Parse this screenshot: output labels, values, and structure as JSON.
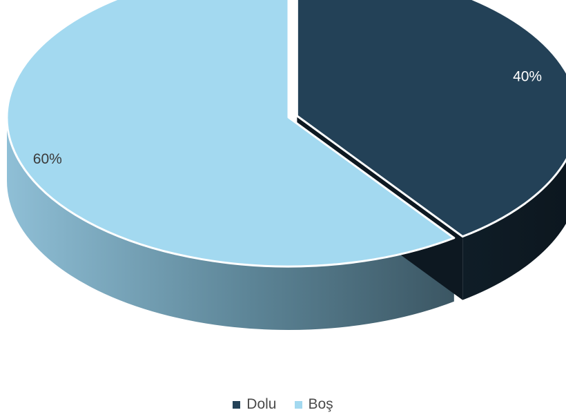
{
  "chart_data": {
    "type": "pie",
    "style": "3d-exploded",
    "categories": [
      "Dolu",
      "Boş"
    ],
    "values": [
      40,
      60
    ],
    "value_labels": [
      "40%",
      "60%"
    ],
    "colors": [
      "#234157",
      "#a3d9f0"
    ],
    "legend": {
      "placement": "bottom",
      "entries": [
        "Dolu",
        "Boş"
      ]
    }
  }
}
